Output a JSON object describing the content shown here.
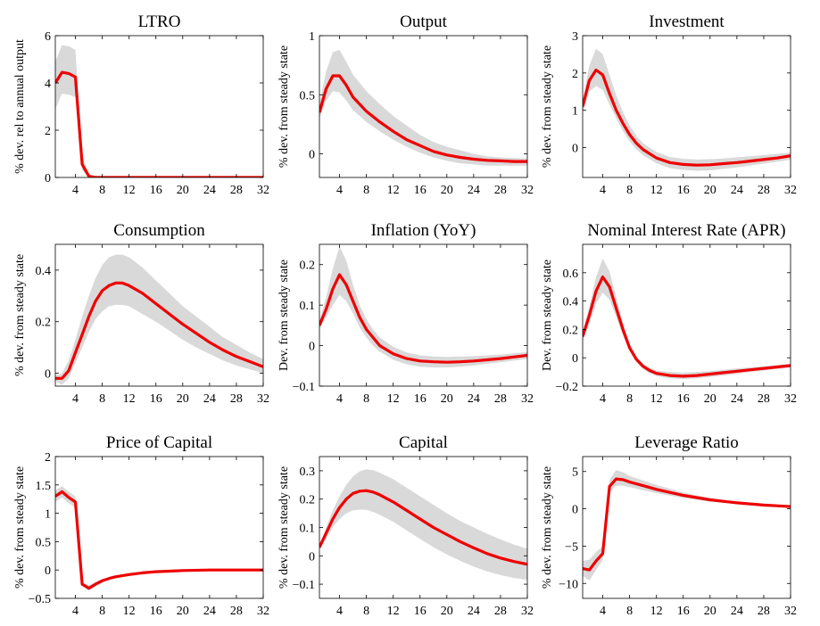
{
  "chart_data": [
    {
      "type": "line",
      "title": "LTRO",
      "ylabel": "% dev. rel to annual output",
      "xlim": [
        1,
        32
      ],
      "ylim": [
        0,
        6
      ],
      "yticks": [
        0,
        2,
        4,
        6
      ],
      "ytick_labels": [
        "0",
        "2",
        "4",
        "6"
      ],
      "xticks": [
        4,
        8,
        12,
        16,
        20,
        24,
        28,
        32
      ],
      "xtick_labels": [
        "4",
        "8",
        "12",
        "16",
        "20",
        "24",
        "28",
        "32"
      ],
      "x": [
        1,
        2,
        3,
        4,
        5,
        6,
        7,
        8,
        10,
        12,
        16,
        20,
        24,
        28,
        32
      ],
      "median": [
        4.0,
        4.45,
        4.4,
        4.25,
        0.55,
        0.05,
        0.0,
        0.0,
        0.0,
        0.0,
        0.0,
        0.0,
        0.0,
        0.0,
        0.0
      ],
      "band_lower": [
        2.9,
        3.55,
        3.5,
        3.4,
        0.3,
        0.02,
        0.0,
        0.0,
        0.0,
        0.0,
        0.0,
        0.0,
        0.0,
        0.0,
        0.0
      ],
      "band_upper": [
        4.9,
        5.6,
        5.55,
        5.4,
        0.9,
        0.15,
        0.0,
        0.0,
        0.0,
        0.0,
        0.0,
        0.0,
        0.0,
        0.0,
        0.0
      ],
      "line_color": "#ee0000",
      "band_color": "#d9d9d9"
    },
    {
      "type": "line",
      "title": "Output",
      "ylabel": "% dev. from steady state",
      "xlim": [
        1,
        32
      ],
      "ylim": [
        -0.2,
        1.0
      ],
      "yticks": [
        0,
        0.5,
        1
      ],
      "ytick_labels": [
        "0",
        "0.5",
        "1"
      ],
      "xticks": [
        4,
        8,
        12,
        16,
        20,
        24,
        28,
        32
      ],
      "xtick_labels": [
        "4",
        "8",
        "12",
        "16",
        "20",
        "24",
        "28",
        "32"
      ],
      "x": [
        1,
        2,
        3,
        4,
        5,
        6,
        8,
        10,
        12,
        14,
        16,
        18,
        20,
        22,
        24,
        26,
        28,
        30,
        32
      ],
      "median": [
        0.35,
        0.55,
        0.66,
        0.66,
        0.58,
        0.48,
        0.36,
        0.27,
        0.19,
        0.12,
        0.07,
        0.02,
        -0.01,
        -0.03,
        -0.045,
        -0.055,
        -0.06,
        -0.065,
        -0.065
      ],
      "band_lower": [
        0.3,
        0.45,
        0.53,
        0.52,
        0.45,
        0.37,
        0.27,
        0.19,
        0.12,
        0.06,
        0.01,
        -0.03,
        -0.06,
        -0.08,
        -0.09,
        -0.1,
        -0.1,
        -0.1,
        -0.1
      ],
      "band_upper": [
        0.42,
        0.7,
        0.86,
        0.88,
        0.78,
        0.67,
        0.53,
        0.42,
        0.32,
        0.24,
        0.16,
        0.1,
        0.06,
        0.03,
        0.0,
        -0.02,
        -0.03,
        -0.035,
        -0.04
      ],
      "line_color": "#ee0000",
      "band_color": "#d9d9d9"
    },
    {
      "type": "line",
      "title": "Investment",
      "ylabel": "% dev. from steady state",
      "xlim": [
        1,
        32
      ],
      "ylim": [
        -0.8,
        3
      ],
      "yticks": [
        0,
        1,
        2,
        3
      ],
      "ytick_labels": [
        "0",
        "1",
        "2",
        "3"
      ],
      "xticks": [
        4,
        8,
        12,
        16,
        20,
        24,
        28,
        32
      ],
      "xtick_labels": [
        "4",
        "8",
        "12",
        "16",
        "20",
        "24",
        "28",
        "32"
      ],
      "x": [
        1,
        2,
        3,
        4,
        5,
        6,
        7,
        8,
        9,
        10,
        12,
        14,
        16,
        18,
        20,
        22,
        24,
        26,
        28,
        30,
        32
      ],
      "median": [
        1.1,
        1.8,
        2.08,
        1.95,
        1.45,
        1.0,
        0.65,
        0.35,
        0.12,
        -0.05,
        -0.28,
        -0.4,
        -0.45,
        -0.47,
        -0.46,
        -0.43,
        -0.4,
        -0.36,
        -0.32,
        -0.28,
        -0.22
      ],
      "band_lower": [
        0.95,
        1.5,
        1.65,
        1.55,
        1.15,
        0.78,
        0.45,
        0.17,
        -0.05,
        -0.2,
        -0.42,
        -0.55,
        -0.6,
        -0.62,
        -0.61,
        -0.57,
        -0.53,
        -0.48,
        -0.43,
        -0.38,
        -0.33
      ],
      "band_upper": [
        1.3,
        2.2,
        2.65,
        2.5,
        1.95,
        1.4,
        0.95,
        0.6,
        0.32,
        0.12,
        -0.12,
        -0.25,
        -0.3,
        -0.32,
        -0.31,
        -0.29,
        -0.26,
        -0.23,
        -0.2,
        -0.17,
        -0.13
      ],
      "line_color": "#ee0000",
      "band_color": "#d9d9d9"
    },
    {
      "type": "line",
      "title": "Consumption",
      "ylabel": "% dev. from steady state",
      "xlim": [
        1,
        32
      ],
      "ylim": [
        -0.05,
        0.5
      ],
      "yticks": [
        0,
        0.2,
        0.4
      ],
      "ytick_labels": [
        "0",
        "0.2",
        "0.4"
      ],
      "xticks": [
        4,
        8,
        12,
        16,
        20,
        24,
        28,
        32
      ],
      "xtick_labels": [
        "4",
        "8",
        "12",
        "16",
        "20",
        "24",
        "28",
        "32"
      ],
      "x": [
        1,
        2,
        3,
        4,
        5,
        6,
        7,
        8,
        9,
        10,
        11,
        12,
        14,
        16,
        18,
        20,
        22,
        24,
        26,
        28,
        30,
        32
      ],
      "median": [
        -0.02,
        -0.02,
        0.01,
        0.08,
        0.15,
        0.22,
        0.28,
        0.32,
        0.34,
        0.35,
        0.35,
        0.34,
        0.31,
        0.27,
        0.23,
        0.19,
        0.155,
        0.12,
        0.09,
        0.065,
        0.045,
        0.025
      ],
      "band_lower": [
        -0.03,
        -0.045,
        -0.02,
        0.04,
        0.1,
        0.16,
        0.21,
        0.24,
        0.26,
        0.265,
        0.265,
        0.26,
        0.23,
        0.2,
        0.165,
        0.13,
        0.1,
        0.075,
        0.05,
        0.03,
        0.015,
        0.0
      ],
      "band_upper": [
        -0.01,
        0.0,
        0.05,
        0.13,
        0.22,
        0.3,
        0.37,
        0.42,
        0.45,
        0.46,
        0.46,
        0.45,
        0.41,
        0.36,
        0.31,
        0.26,
        0.22,
        0.18,
        0.14,
        0.11,
        0.08,
        0.055
      ],
      "line_color": "#ee0000",
      "band_color": "#d9d9d9"
    },
    {
      "type": "line",
      "title": "Inflation (YoY)",
      "ylabel": "Dev. from steady state",
      "xlim": [
        1,
        32
      ],
      "ylim": [
        -0.1,
        0.25
      ],
      "yticks": [
        -0.1,
        0,
        0.1,
        0.2
      ],
      "ytick_labels": [
        "−0.1",
        "0",
        "0.1",
        "0.2"
      ],
      "xticks": [
        4,
        8,
        12,
        16,
        20,
        24,
        28,
        32
      ],
      "xtick_labels": [
        "4",
        "8",
        "12",
        "16",
        "20",
        "24",
        "28",
        "32"
      ],
      "x": [
        1,
        2,
        3,
        4,
        5,
        6,
        7,
        8,
        9,
        10,
        12,
        14,
        16,
        18,
        20,
        22,
        24,
        26,
        28,
        30,
        32
      ],
      "median": [
        0.05,
        0.09,
        0.14,
        0.175,
        0.15,
        0.11,
        0.07,
        0.04,
        0.02,
        0.0,
        -0.02,
        -0.032,
        -0.038,
        -0.04,
        -0.041,
        -0.04,
        -0.038,
        -0.035,
        -0.032,
        -0.028,
        -0.024
      ],
      "band_lower": [
        0.04,
        0.07,
        0.1,
        0.125,
        0.11,
        0.08,
        0.045,
        0.02,
        0.0,
        -0.015,
        -0.035,
        -0.046,
        -0.052,
        -0.054,
        -0.054,
        -0.052,
        -0.049,
        -0.045,
        -0.041,
        -0.037,
        -0.033
      ],
      "band_upper": [
        0.06,
        0.12,
        0.19,
        0.245,
        0.21,
        0.15,
        0.1,
        0.065,
        0.04,
        0.02,
        -0.003,
        -0.017,
        -0.024,
        -0.027,
        -0.028,
        -0.027,
        -0.026,
        -0.024,
        -0.022,
        -0.019,
        -0.016
      ],
      "line_color": "#ee0000",
      "band_color": "#d9d9d9"
    },
    {
      "type": "line",
      "title": "Nominal Interest Rate (APR)",
      "ylabel": "Dev. from steady state",
      "xlim": [
        1,
        32
      ],
      "ylim": [
        -0.2,
        0.8
      ],
      "yticks": [
        -0.2,
        0,
        0.2,
        0.4,
        0.6
      ],
      "ytick_labels": [
        "−0.2",
        "0",
        "0.2",
        "0.4",
        "0.6"
      ],
      "xticks": [
        4,
        8,
        12,
        16,
        20,
        24,
        28,
        32
      ],
      "xtick_labels": [
        "4",
        "8",
        "12",
        "16",
        "20",
        "24",
        "28",
        "32"
      ],
      "x": [
        1,
        2,
        3,
        4,
        5,
        6,
        7,
        8,
        9,
        10,
        11,
        12,
        14,
        16,
        18,
        20,
        22,
        24,
        26,
        28,
        30,
        32
      ],
      "median": [
        0.15,
        0.3,
        0.47,
        0.57,
        0.5,
        0.35,
        0.2,
        0.07,
        -0.01,
        -0.06,
        -0.09,
        -0.11,
        -0.125,
        -0.13,
        -0.125,
        -0.115,
        -0.105,
        -0.095,
        -0.085,
        -0.075,
        -0.065,
        -0.055
      ],
      "band_lower": [
        0.12,
        0.24,
        0.38,
        0.46,
        0.41,
        0.29,
        0.16,
        0.05,
        -0.03,
        -0.08,
        -0.11,
        -0.13,
        -0.145,
        -0.15,
        -0.145,
        -0.135,
        -0.125,
        -0.115,
        -0.1,
        -0.09,
        -0.08,
        -0.07
      ],
      "band_upper": [
        0.18,
        0.36,
        0.57,
        0.7,
        0.61,
        0.43,
        0.25,
        0.1,
        0.01,
        -0.04,
        -0.07,
        -0.09,
        -0.1,
        -0.105,
        -0.1,
        -0.095,
        -0.085,
        -0.075,
        -0.067,
        -0.06,
        -0.052,
        -0.045
      ],
      "line_color": "#ee0000",
      "band_color": "#d9d9d9"
    },
    {
      "type": "line",
      "title": "Price of Capital",
      "ylabel": "% dev. from steady state",
      "xlim": [
        1,
        32
      ],
      "ylim": [
        -0.5,
        2
      ],
      "yticks": [
        -0.5,
        0,
        0.5,
        1,
        1.5,
        2
      ],
      "ytick_labels": [
        "−0.5",
        "0",
        "0.5",
        "1",
        "1.5",
        "2"
      ],
      "xticks": [
        4,
        8,
        12,
        16,
        20,
        24,
        28,
        32
      ],
      "xtick_labels": [
        "4",
        "8",
        "12",
        "16",
        "20",
        "24",
        "28",
        "32"
      ],
      "x": [
        1,
        2,
        3,
        4,
        5,
        6,
        7,
        8,
        9,
        10,
        12,
        14,
        16,
        18,
        20,
        24,
        28,
        32
      ],
      "median": [
        1.3,
        1.38,
        1.28,
        1.2,
        -0.25,
        -0.32,
        -0.25,
        -0.19,
        -0.15,
        -0.12,
        -0.08,
        -0.05,
        -0.03,
        -0.02,
        -0.01,
        0.0,
        0.0,
        0.0
      ],
      "band_lower": [
        1.2,
        1.28,
        1.18,
        1.1,
        -0.28,
        -0.37,
        -0.29,
        -0.22,
        -0.17,
        -0.14,
        -0.09,
        -0.06,
        -0.04,
        -0.025,
        -0.015,
        -0.005,
        0.0,
        0.0
      ],
      "band_upper": [
        1.4,
        1.48,
        1.38,
        1.3,
        -0.22,
        -0.27,
        -0.21,
        -0.16,
        -0.13,
        -0.1,
        -0.07,
        -0.04,
        -0.025,
        -0.015,
        -0.005,
        0.0,
        0.0,
        0.0
      ],
      "line_color": "#ee0000",
      "band_color": "#d9d9d9"
    },
    {
      "type": "line",
      "title": "Capital",
      "ylabel": "% dev. from steady state",
      "xlim": [
        1,
        32
      ],
      "ylim": [
        -0.15,
        0.35
      ],
      "yticks": [
        -0.1,
        0,
        0.1,
        0.2,
        0.3
      ],
      "ytick_labels": [
        "−0.1",
        "0",
        "0.1",
        "0.2",
        "0.3"
      ],
      "xticks": [
        4,
        8,
        12,
        16,
        20,
        24,
        28,
        32
      ],
      "xtick_labels": [
        "4",
        "8",
        "12",
        "16",
        "20",
        "24",
        "28",
        "32"
      ],
      "x": [
        1,
        2,
        3,
        4,
        5,
        6,
        7,
        8,
        9,
        10,
        12,
        14,
        16,
        18,
        20,
        22,
        24,
        26,
        28,
        30,
        32
      ],
      "median": [
        0.03,
        0.08,
        0.13,
        0.17,
        0.2,
        0.22,
        0.228,
        0.23,
        0.225,
        0.215,
        0.19,
        0.16,
        0.13,
        0.1,
        0.075,
        0.05,
        0.028,
        0.008,
        -0.008,
        -0.02,
        -0.03
      ],
      "band_lower": [
        0.025,
        0.06,
        0.1,
        0.13,
        0.15,
        0.16,
        0.163,
        0.162,
        0.155,
        0.145,
        0.12,
        0.09,
        0.06,
        0.03,
        0.005,
        -0.018,
        -0.038,
        -0.055,
        -0.068,
        -0.078,
        -0.085
      ],
      "band_upper": [
        0.035,
        0.1,
        0.16,
        0.21,
        0.25,
        0.28,
        0.298,
        0.305,
        0.302,
        0.293,
        0.27,
        0.24,
        0.21,
        0.18,
        0.15,
        0.123,
        0.1,
        0.078,
        0.058,
        0.04,
        0.025
      ],
      "line_color": "#ee0000",
      "band_color": "#d9d9d9"
    },
    {
      "type": "line",
      "title": "Leverage Ratio",
      "ylabel": "% dev. from steady state",
      "xlim": [
        1,
        32
      ],
      "ylim": [
        -12,
        7
      ],
      "yticks": [
        -10,
        -5,
        0,
        5
      ],
      "ytick_labels": [
        "−10",
        "−5",
        "0",
        "5"
      ],
      "xticks": [
        4,
        8,
        12,
        16,
        20,
        24,
        28,
        32
      ],
      "xtick_labels": [
        "4",
        "8",
        "12",
        "16",
        "20",
        "24",
        "28",
        "32"
      ],
      "x": [
        1,
        2,
        3,
        4,
        5,
        6,
        7,
        8,
        10,
        12,
        14,
        16,
        18,
        20,
        22,
        24,
        26,
        28,
        30,
        32
      ],
      "median": [
        -8.0,
        -8.2,
        -7.0,
        -6.0,
        3.0,
        4.0,
        3.9,
        3.6,
        3.1,
        2.6,
        2.2,
        1.8,
        1.5,
        1.2,
        1.0,
        0.8,
        0.65,
        0.5,
        0.4,
        0.3
      ],
      "band_lower": [
        -9.0,
        -9.6,
        -8.2,
        -6.9,
        2.2,
        3.1,
        3.1,
        2.9,
        2.5,
        2.1,
        1.75,
        1.45,
        1.2,
        0.95,
        0.8,
        0.65,
        0.55,
        0.45,
        0.35,
        0.28
      ],
      "band_upper": [
        -7.0,
        -6.8,
        -5.8,
        -5.0,
        3.9,
        5.2,
        4.9,
        4.4,
        3.8,
        3.2,
        2.7,
        2.2,
        1.8,
        1.45,
        1.2,
        0.95,
        0.75,
        0.58,
        0.45,
        0.34
      ],
      "line_color": "#ee0000",
      "band_color": "#d9d9d9"
    }
  ]
}
